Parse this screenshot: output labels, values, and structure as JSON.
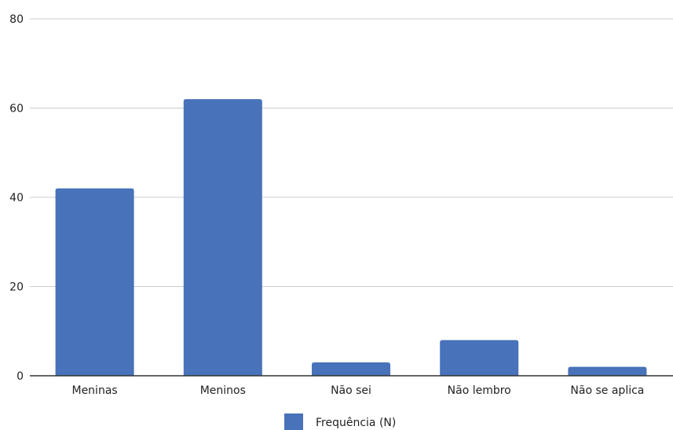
{
  "chart_data": {
    "type": "bar",
    "categories": [
      "Meninas",
      "Meninos",
      "Não sei",
      "Não lembro",
      "Não se aplica"
    ],
    "series": [
      {
        "name": "Frequência (N)",
        "values": [
          42,
          62,
          3,
          8,
          2
        ]
      }
    ],
    "ylim": [
      0,
      80
    ],
    "yticks": [
      0,
      20,
      40,
      60,
      80
    ],
    "grid": true,
    "legend": "bottom",
    "colors": {
      "bar": "#4872b9",
      "grid": "#cccccc",
      "axis": "#333333",
      "text": "#222222"
    }
  }
}
